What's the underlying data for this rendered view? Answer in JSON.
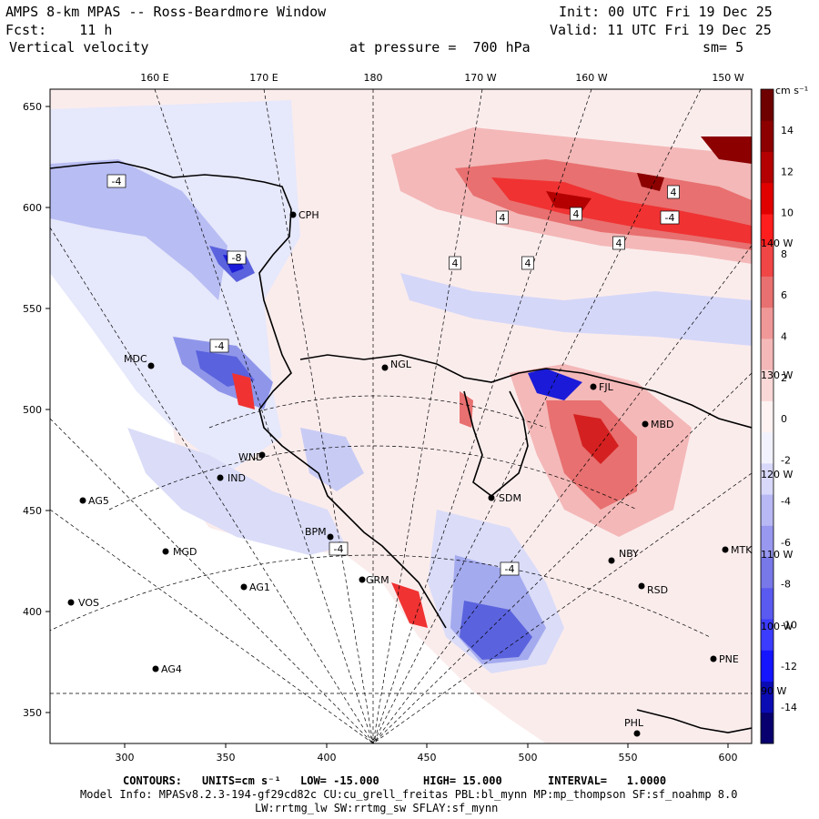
{
  "header": {
    "title": "AMPS 8-km MPAS -- Ross-Beardmore Window",
    "init": "Init: 00 UTC Fri 19 Dec 25",
    "fcst": "Fcst:    11 h",
    "valid": "Valid: 11 UTC Fri 19 Dec 25",
    "field": "Vertical velocity",
    "level": "at pressure =  700 hPa",
    "smooth": "sm= 5"
  },
  "axes": {
    "x_ticks": [
      "300",
      "350",
      "400",
      "450",
      "500",
      "550",
      "600"
    ],
    "y_ticks": [
      "650",
      "600",
      "550",
      "500",
      "450",
      "400",
      "350"
    ],
    "lon_top": [
      "160 E",
      "170 E",
      "180",
      "170 W",
      "160 W",
      "150 W"
    ],
    "lon_right": [
      "140 W",
      "130 W",
      "120 W",
      "110 W",
      "100 W",
      "90 W"
    ]
  },
  "colorbar": {
    "units": "cm s⁻¹",
    "labels": [
      "14",
      "12",
      "10",
      "8",
      "6",
      "4",
      "2",
      "0",
      "-2",
      "-4",
      "-6",
      "-8",
      "-10",
      "-12",
      "-14"
    ],
    "colors": [
      "#08006e",
      "#0b0bb4",
      "#1414ff",
      "#3c3cff",
      "#5a5af0",
      "#7878e8",
      "#9898f0",
      "#b8b8f4",
      "#d8d8fa",
      "#f2f2fe",
      "#fef2f2",
      "#fad8d8",
      "#f4b8b8",
      "#f09898",
      "#e87070",
      "#f04646",
      "#ff1e1e",
      "#e00000",
      "#b40000",
      "#8c0000",
      "#6e0000"
    ]
  },
  "stations": [
    {
      "name": "CPH"
    },
    {
      "name": "MDC"
    },
    {
      "name": "NGL"
    },
    {
      "name": "WND"
    },
    {
      "name": "IND"
    },
    {
      "name": "AG5"
    },
    {
      "name": "SDM"
    },
    {
      "name": "MGD"
    },
    {
      "name": "AG1"
    },
    {
      "name": "VOS"
    },
    {
      "name": "AG4"
    },
    {
      "name": "BPM"
    },
    {
      "name": "GRM"
    },
    {
      "name": "MBD"
    },
    {
      "name": "NBY"
    },
    {
      "name": "RSD"
    },
    {
      "name": "MTK"
    },
    {
      "name": "PNE"
    },
    {
      "name": "PHL"
    },
    {
      "name": "FJL"
    }
  ],
  "contour_labels": [
    "-4",
    "-4",
    "4",
    "4",
    "4",
    "4",
    "-4",
    "-8",
    "-4",
    "-4",
    "4",
    "4"
  ],
  "footer": {
    "contours_label": "CONTOURS:",
    "units": "UNITS=cm s⁻¹",
    "low": "LOW= -15.000",
    "high": "HIGH= 15.000",
    "interval": "INTERVAL=   1.0000",
    "model_info": "Model Info: MPASv8.2.3-194-gf29cd82c CU:cu_grell_freitas PBL:bl_mynn MP:mp_thompson SF:sf_noahmp 8.0",
    "physics": "LW:rrtmg_lw SW:rrtmg_sw SFLAY:sf_mynn"
  }
}
